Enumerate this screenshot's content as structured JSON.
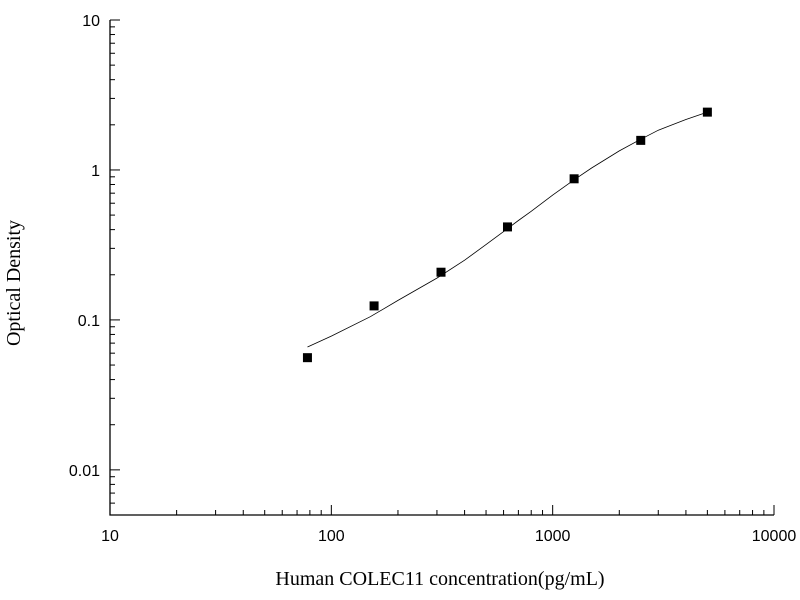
{
  "chart_data": {
    "type": "scatter",
    "title": "",
    "xlabel": "Human COLEC11 concentration(pg/mL)",
    "ylabel": "Optical Density",
    "xscale": "log",
    "yscale": "log",
    "xlim": [
      10,
      10000
    ],
    "ylim": [
      0.005,
      10
    ],
    "x_ticks": [
      10,
      100,
      1000,
      10000
    ],
    "x_tick_labels": [
      "10",
      "100",
      "1000",
      "10000"
    ],
    "y_ticks": [
      0.01,
      0.1,
      1,
      10
    ],
    "y_tick_labels": [
      "0.01",
      "0.1",
      "1",
      "10"
    ],
    "grid": false,
    "legend": "none",
    "series": [
      {
        "marker": "square",
        "x": [
          78,
          156,
          313,
          625,
          1250,
          2500,
          5000
        ],
        "y": [
          0.056,
          0.124,
          0.208,
          0.417,
          0.873,
          1.575,
          2.43
        ]
      }
    ],
    "fit_curve": {
      "type": "line",
      "x": [
        78,
        100,
        150,
        200,
        300,
        400,
        500,
        600,
        700,
        800,
        1000,
        1250,
        1500,
        2000,
        2500,
        3000,
        4000,
        5000
      ],
      "y": [
        0.066,
        0.078,
        0.105,
        0.135,
        0.19,
        0.25,
        0.318,
        0.388,
        0.46,
        0.53,
        0.68,
        0.86,
        1.03,
        1.34,
        1.6,
        1.84,
        2.17,
        2.43
      ]
    }
  }
}
